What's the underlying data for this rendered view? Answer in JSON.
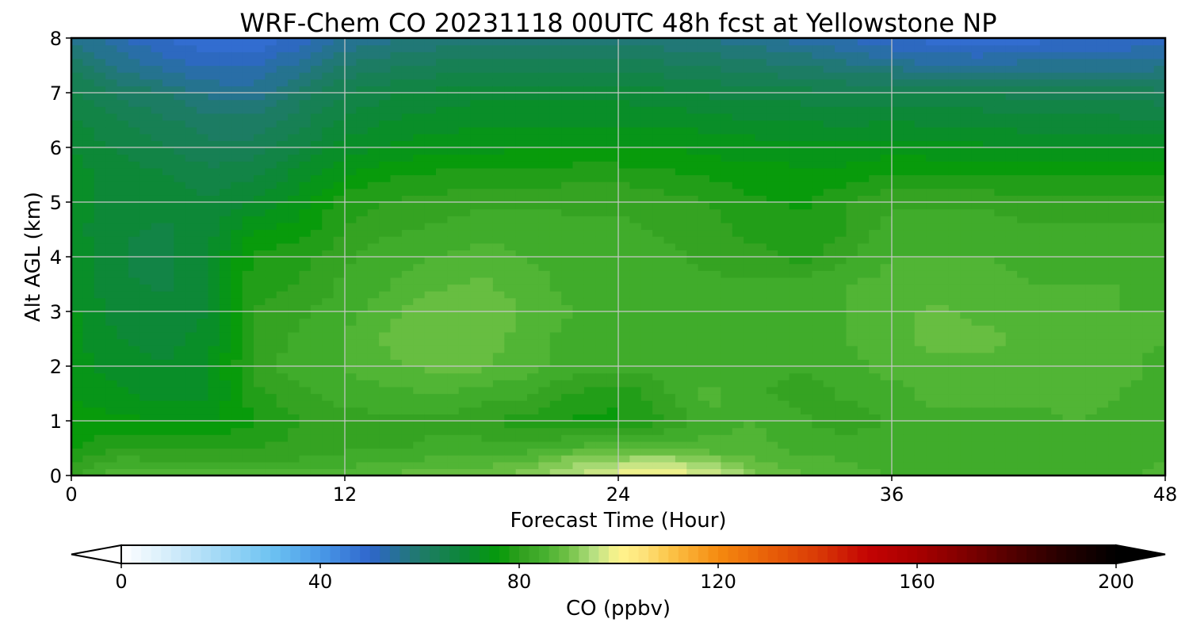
{
  "chart_data": {
    "type": "heatmap",
    "title": "WRF-Chem CO  20231118 00UTC 48h fcst at Yellowstone NP",
    "xlabel": "Forecast Time (Hour)",
    "ylabel": "Alt AGL (km)",
    "xlim": [
      0,
      48
    ],
    "ylim": [
      0,
      8
    ],
    "x_ticks": [
      "0",
      "12",
      "24",
      "36",
      "48"
    ],
    "y_ticks": [
      "0",
      "1",
      "2",
      "3",
      "4",
      "5",
      "6",
      "7",
      "8"
    ],
    "grid": true,
    "x": [
      0,
      2,
      4,
      6,
      8,
      10,
      12,
      14,
      16,
      18,
      20,
      22,
      24,
      26,
      28,
      30,
      32,
      34,
      36,
      38,
      40,
      42,
      44,
      46,
      48
    ],
    "y": [
      0,
      0.25,
      0.5,
      1,
      1.5,
      2,
      2.5,
      3,
      3.5,
      4,
      4.5,
      5,
      5.5,
      6,
      6.5,
      7,
      7.5,
      8
    ],
    "z": [
      [
        82,
        88,
        86,
        86,
        86,
        86,
        87,
        88,
        89,
        89,
        91,
        95,
        99,
        100,
        98,
        91,
        88,
        86,
        85,
        85,
        84,
        84,
        84,
        84,
        86
      ],
      [
        79,
        84,
        83,
        83,
        83,
        83,
        84,
        85,
        86,
        86,
        88,
        92,
        94,
        95,
        92,
        88,
        86,
        85,
        84,
        84,
        84,
        84,
        84,
        84,
        85
      ],
      [
        77,
        80,
        79,
        80,
        80,
        81,
        82,
        82,
        83,
        84,
        84,
        86,
        87,
        87,
        86,
        86,
        84,
        84,
        84,
        84,
        84,
        84,
        84,
        84,
        84
      ],
      [
        76,
        76,
        75,
        75,
        77,
        80,
        81,
        82,
        82,
        80,
        79,
        77,
        77,
        80,
        84,
        85,
        83,
        81,
        83,
        84,
        84,
        84,
        85,
        84,
        84
      ],
      [
        75,
        73,
        71,
        72,
        79,
        82,
        84,
        84,
        85,
        84,
        83,
        80,
        78,
        82,
        86,
        83,
        81,
        83,
        84,
        86,
        86,
        86,
        86,
        85,
        84
      ],
      [
        74,
        71,
        70,
        72,
        81,
        84,
        85,
        87,
        88,
        88,
        86,
        84,
        83,
        84,
        84,
        83,
        83,
        84,
        86,
        87,
        87,
        87,
        87,
        86,
        84
      ],
      [
        73,
        70,
        69,
        71,
        81,
        83,
        85,
        88,
        89,
        89,
        86,
        84,
        84,
        84,
        83,
        83,
        84,
        85,
        87,
        88,
        88,
        87,
        86,
        86,
        85
      ],
      [
        73,
        69,
        68,
        70,
        80,
        82,
        84,
        87,
        89,
        90,
        87,
        85,
        84,
        84,
        83,
        83,
        84,
        85,
        87,
        88,
        87,
        86,
        86,
        85,
        85
      ],
      [
        72,
        68,
        67,
        70,
        79,
        80,
        83,
        85,
        87,
        88,
        86,
        84,
        84,
        83,
        83,
        83,
        84,
        85,
        86,
        86,
        86,
        85,
        85,
        85,
        84
      ],
      [
        72,
        68,
        66,
        70,
        78,
        79,
        82,
        84,
        85,
        86,
        85,
        84,
        84,
        83,
        82,
        81,
        79,
        82,
        85,
        85,
        85,
        84,
        84,
        84,
        84
      ],
      [
        71,
        68,
        67,
        69,
        75,
        76,
        80,
        82,
        83,
        84,
        84,
        83,
        83,
        82,
        81,
        79,
        78,
        80,
        84,
        84,
        84,
        83,
        83,
        83,
        83
      ],
      [
        71,
        69,
        68,
        68,
        70,
        74,
        79,
        80,
        81,
        82,
        82,
        82,
        82,
        81,
        80,
        78,
        77,
        80,
        82,
        82,
        82,
        81,
        81,
        81,
        81
      ],
      [
        71,
        69,
        68,
        66,
        67,
        71,
        75,
        77,
        78,
        78,
        78,
        79,
        79,
        78,
        77,
        76,
        76,
        76,
        78,
        78,
        77,
        77,
        77,
        77,
        77
      ],
      [
        70,
        67,
        65,
        63,
        63,
        67,
        71,
        73,
        74,
        74,
        75,
        75,
        75,
        75,
        74,
        74,
        73,
        73,
        74,
        73,
        73,
        73,
        72,
        72,
        72
      ],
      [
        68,
        65,
        63,
        61,
        61,
        64,
        68,
        70,
        71,
        72,
        72,
        72,
        72,
        72,
        71,
        70,
        70,
        69,
        70,
        69,
        69,
        68,
        68,
        68,
        68
      ],
      [
        66,
        62,
        60,
        57,
        56,
        61,
        65,
        67,
        68,
        69,
        69,
        69,
        69,
        68,
        67,
        66,
        66,
        65,
        65,
        65,
        65,
        64,
        64,
        64,
        63
      ],
      [
        62,
        57,
        54,
        52,
        52,
        56,
        60,
        62,
        63,
        64,
        64,
        64,
        64,
        63,
        62,
        61,
        60,
        58,
        57,
        55,
        55,
        56,
        56,
        56,
        57
      ],
      [
        57,
        53,
        50,
        48,
        48,
        51,
        55,
        57,
        58,
        59,
        59,
        59,
        59,
        58,
        57,
        56,
        54,
        52,
        50,
        49,
        48,
        49,
        50,
        50,
        52
      ]
    ],
    "colorbar": {
      "label": "CO  (ppbv)",
      "min": 0,
      "max": 200,
      "ticks": [
        "0",
        "40",
        "80",
        "120",
        "160",
        "200"
      ],
      "extend": "both",
      "orientation": "horizontal"
    },
    "colormap_stops": [
      [
        0,
        "#ffffff"
      ],
      [
        10,
        "#d2ecfa"
      ],
      [
        20,
        "#a0d8f6"
      ],
      [
        30,
        "#6ec3f2"
      ],
      [
        40,
        "#4a9ae8"
      ],
      [
        50,
        "#2f66cc"
      ],
      [
        60,
        "#1f7a6a"
      ],
      [
        70,
        "#0a8a30"
      ],
      [
        76,
        "#059b0a"
      ],
      [
        80,
        "#2f9f1e"
      ],
      [
        85,
        "#46b02f"
      ],
      [
        90,
        "#72c247"
      ],
      [
        95,
        "#b7e081"
      ],
      [
        100,
        "#fff58e"
      ],
      [
        105,
        "#fde27a"
      ],
      [
        110,
        "#fcc64a"
      ],
      [
        120,
        "#f58a0f"
      ],
      [
        130,
        "#e86008"
      ],
      [
        140,
        "#d93a06"
      ],
      [
        150,
        "#c40303"
      ],
      [
        160,
        "#a80000"
      ],
      [
        170,
        "#7e0000"
      ],
      [
        180,
        "#4e0000"
      ],
      [
        190,
        "#230000"
      ],
      [
        200,
        "#000000"
      ]
    ]
  }
}
